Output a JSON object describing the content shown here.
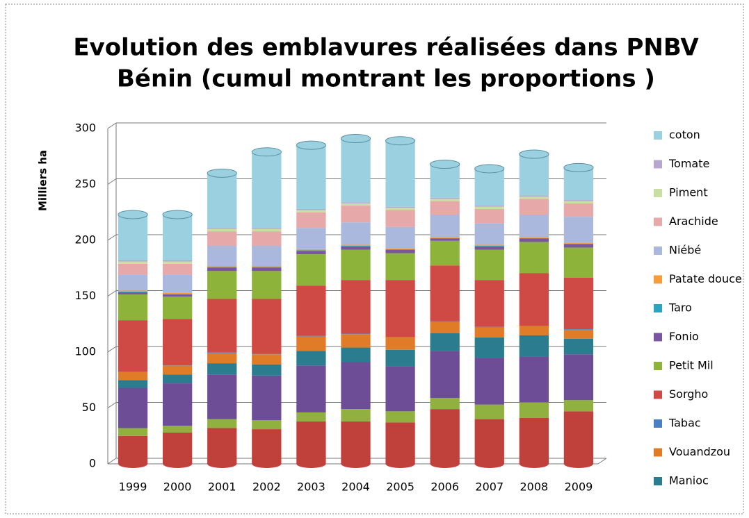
{
  "chart_data": {
    "type": "bar",
    "stacked": true,
    "title": "Evolution des emblavures réalisées dans PNBV Bénin (cumul montrant les proportions )",
    "y_label": "Milliers ha",
    "categories": [
      "1999",
      "2000",
      "2001",
      "2002",
      "2003",
      "2004",
      "2005",
      "2006",
      "2007",
      "2008",
      "2009"
    ],
    "ylim": [
      0,
      300
    ],
    "yticks": [
      0,
      50,
      100,
      150,
      200,
      250,
      300
    ],
    "grid": true,
    "legend": "right",
    "series": [
      {
        "color": "#c0413b",
        "values": [
          25,
          28,
          32,
          31,
          38,
          38,
          37,
          49,
          40,
          41,
          47
        ]
      },
      {
        "color": "#90b040",
        "values": [
          7,
          6,
          8,
          8,
          8,
          11,
          10,
          10,
          13,
          14,
          10
        ]
      },
      {
        "color": "#6d4d96",
        "values": [
          36,
          38,
          40,
          40,
          42,
          42,
          40,
          42,
          42,
          41,
          41
        ]
      },
      {
        "name": "Manioc",
        "color": "#2c7c8f",
        "values": [
          7,
          8,
          10,
          10,
          13,
          13,
          15,
          16,
          18,
          19,
          14
        ]
      },
      {
        "name": "Vouandzou",
        "color": "#e07b28",
        "values": [
          7,
          8,
          9,
          9,
          13,
          12,
          11,
          10,
          9,
          8,
          8
        ]
      },
      {
        "name": "Tabac",
        "color": "#4a7fc4",
        "values": [
          0.5,
          0.5,
          0.5,
          0.5,
          0.5,
          0.5,
          0.5,
          0.5,
          0.5,
          0.5,
          0.5
        ]
      },
      {
        "name": "Sorgho",
        "color": "#d04a45",
        "values": [
          46,
          41,
          48,
          49,
          45,
          48,
          51,
          50,
          42,
          47,
          46
        ]
      },
      {
        "name": "Petit Mil",
        "color": "#8db33a",
        "values": [
          23,
          20,
          25,
          25,
          28,
          27,
          24,
          22,
          27,
          28,
          27
        ]
      },
      {
        "name": "Fonio",
        "color": "#7a55a0",
        "values": [
          2,
          2,
          3,
          3,
          3,
          3,
          3,
          2,
          3,
          3,
          3
        ]
      },
      {
        "name": "Taro",
        "color": "#2ea3bd",
        "values": [
          0.5,
          0.5,
          0.5,
          0.5,
          0.5,
          0.5,
          0.5,
          0.5,
          0.5,
          0.5,
          0.5
        ]
      },
      {
        "name": "Patate douce",
        "color": "#f59d3d",
        "values": [
          1,
          1,
          1,
          1,
          1,
          1,
          1,
          1,
          1,
          1,
          1
        ]
      },
      {
        "name": "Niébé",
        "color": "#a9b8dc",
        "values": [
          14,
          16,
          18,
          18,
          19,
          20,
          19,
          20,
          19,
          20,
          23
        ]
      },
      {
        "name": "Arachide",
        "color": "#e6a8a8",
        "values": [
          10,
          10,
          13,
          13,
          14,
          15,
          15,
          12,
          13,
          14,
          12
        ]
      },
      {
        "name": "Piment",
        "color": "#c9dea2",
        "values": [
          2,
          2,
          2,
          2,
          2,
          2,
          2,
          2,
          2,
          2,
          2
        ]
      },
      {
        "name": "Tomate",
        "color": "#b7a7cf",
        "values": [
          1,
          1,
          1,
          1,
          1,
          1,
          1,
          1,
          1,
          1,
          1
        ]
      },
      {
        "name": "coton",
        "color": "#9ad0e0",
        "values": [
          41,
          41,
          49,
          68,
          57,
          57,
          59,
          30,
          33,
          37,
          29
        ]
      }
    ]
  }
}
